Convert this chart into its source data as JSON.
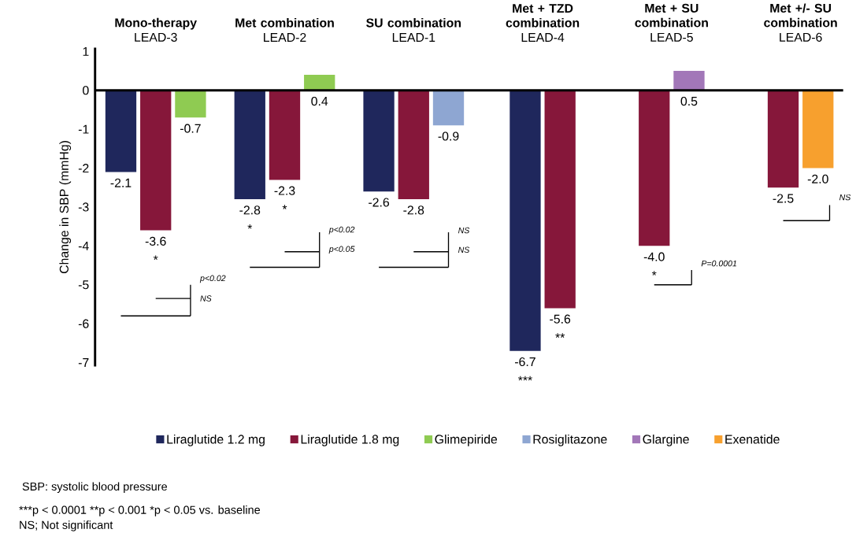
{
  "chart_data": {
    "type": "bar",
    "categories": [
      "**Mono-therapy** LEAD-3",
      "**Met combination** LEAD-2",
      "**SU combination** LEAD-1",
      "**Met + TZD combination** LEAD-4",
      "**Met + SU combination** LEAD-5",
      "**Met +/- SU combination** LEAD-6"
    ],
    "series": [
      {
        "name": "Liraglutide 1.2 mg",
        "color": "#1f275c",
        "values": [
          -2.1,
          -2.8,
          -2.6,
          -6.7,
          null,
          null
        ],
        "value_labels": [
          "-2.1",
          "-2.8",
          "-2.6",
          "-6.7",
          null,
          null
        ]
      },
      {
        "name": "Liraglutide 1.8 mg",
        "color": "#86173a",
        "values": [
          -3.6,
          -2.3,
          -2.8,
          -5.6,
          -4.0,
          -2.5
        ],
        "value_labels": [
          "-3.6",
          "-2.3",
          "-2.8",
          "-5.6",
          "-4.0",
          "-2.5"
        ]
      },
      {
        "name": "Glimepiride",
        "color": "#8fcb52",
        "values": [
          -0.7,
          0.4,
          null,
          null,
          null,
          null
        ],
        "value_labels": [
          "-0.7",
          "0.4",
          null,
          null,
          null,
          null
        ]
      },
      {
        "name": "Rosiglitazone",
        "color": "#8ea6d2",
        "values": [
          null,
          null,
          -0.9,
          null,
          null,
          null
        ],
        "value_labels": [
          null,
          null,
          "-0.9",
          null,
          null,
          null
        ]
      },
      {
        "name": "Glargine",
        "color": "#a277b8",
        "values": [
          null,
          null,
          null,
          null,
          0.5,
          null
        ],
        "value_labels": [
          null,
          null,
          null,
          null,
          "0.5",
          null
        ]
      },
      {
        "name": "Exenatide",
        "color": "#f7a02e",
        "values": [
          null,
          null,
          null,
          null,
          null,
          -2.0
        ],
        "value_labels": [
          null,
          null,
          null,
          null,
          null,
          "-2.0"
        ]
      }
    ],
    "ylabel": "Change in SBP (mmHg)",
    "ylim": [
      -7.1,
      1.1
    ],
    "yticks": [
      -7,
      -6,
      -5,
      -4,
      -3,
      -2,
      -1,
      0,
      1
    ],
    "legend": "bottom",
    "annotations": [
      "*",
      "*",
      "*",
      "***",
      "**",
      "*",
      "p<0.02",
      "NS",
      "p<0.02",
      "p<0.05",
      "NS",
      "NS",
      "*P*=0.0001",
      "NS",
      "SBP: systolic blood pressure",
      "***p < 0.0001 **p < 0.001 *p < 0.05 vs. baseline",
      "NS; Not significant"
    ]
  }
}
